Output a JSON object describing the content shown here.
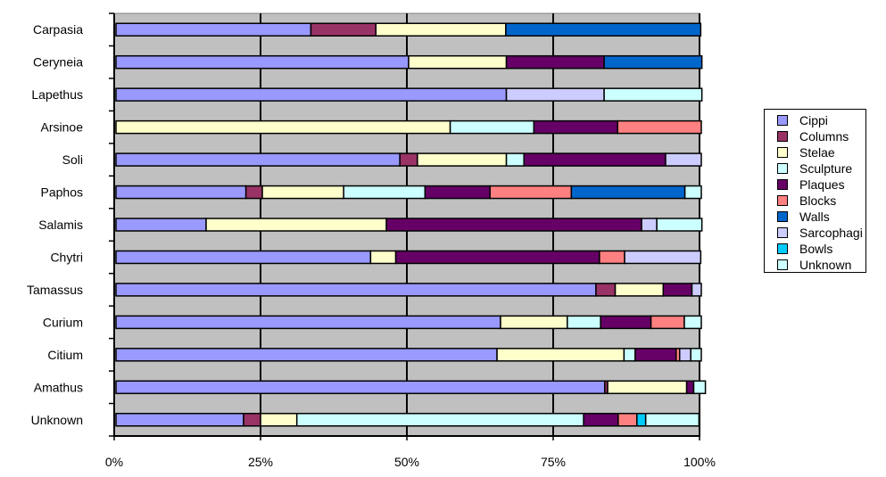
{
  "chart_data": {
    "type": "bar",
    "orientation": "horizontal",
    "stacked": "percent",
    "title": "",
    "xlabel": "",
    "ylabel": "",
    "xlim": [
      0,
      100
    ],
    "x_ticks": [
      "0%",
      "25%",
      "50%",
      "75%",
      "100%"
    ],
    "grid": "vertical",
    "legend_position": "right",
    "plot_background": "#C0C0C0",
    "categories": [
      "Carpasia",
      "Ceryneia",
      "Lapethus",
      "Arsinoe",
      "Soli",
      "Paphos",
      "Salamis",
      "Chytri",
      "Tamassus",
      "Curium",
      "Citium",
      "Amathus",
      "Unknown"
    ],
    "series": [
      {
        "name": "Cippi",
        "color": "#9999FF",
        "values": [
          33.3,
          50.0,
          66.7,
          0,
          48.5,
          22.2,
          15.4,
          43.5,
          82.0,
          65.7,
          65.1,
          83.5,
          21.8
        ]
      },
      {
        "name": "Columns",
        "color": "#993366",
        "values": [
          11.1,
          0,
          0,
          0,
          3.0,
          2.8,
          0,
          0,
          3.3,
          0,
          0,
          0.5,
          2.9
        ]
      },
      {
        "name": "Stelae",
        "color": "#FFFFCC",
        "values": [
          22.2,
          16.7,
          0,
          57.1,
          15.2,
          13.9,
          30.8,
          4.3,
          8.2,
          11.4,
          21.7,
          13.5,
          6.2
        ]
      },
      {
        "name": "Sculpture",
        "color": "#CCFFFF",
        "values": [
          0,
          0,
          0,
          14.3,
          3.0,
          13.9,
          0,
          0,
          0,
          5.7,
          1.9,
          0,
          49.0
        ]
      },
      {
        "name": "Plaques",
        "color": "#660066",
        "values": [
          0,
          16.7,
          0,
          14.3,
          24.2,
          11.1,
          43.6,
          34.8,
          4.9,
          8.6,
          7.0,
          1.2,
          5.9
        ]
      },
      {
        "name": "Blocks",
        "color": "#FF8080",
        "values": [
          0,
          0,
          0,
          14.3,
          0,
          13.9,
          0,
          4.3,
          0,
          5.7,
          0.6,
          0,
          3.2
        ]
      },
      {
        "name": "Walls",
        "color": "#0066CC",
        "values": [
          33.3,
          16.7,
          0,
          0,
          0,
          19.4,
          0,
          0,
          0,
          0,
          0,
          0,
          0
        ]
      },
      {
        "name": "Sarcophagi",
        "color": "#CCCCFF",
        "values": [
          0,
          0,
          16.7,
          0,
          6.1,
          0,
          2.6,
          13.0,
          1.6,
          0,
          1.9,
          0,
          0
        ]
      },
      {
        "name": "Bowls",
        "color": "#00CCFF",
        "values": [
          0,
          0,
          0,
          0,
          0,
          0,
          0,
          0,
          0,
          0,
          0,
          0,
          1.5
        ]
      },
      {
        "name": "Unknown",
        "color": "#CCFFFF",
        "values": [
          0,
          0,
          16.7,
          0,
          0,
          2.8,
          7.7,
          0,
          0,
          2.9,
          1.8,
          2.0,
          9.1
        ]
      }
    ]
  }
}
